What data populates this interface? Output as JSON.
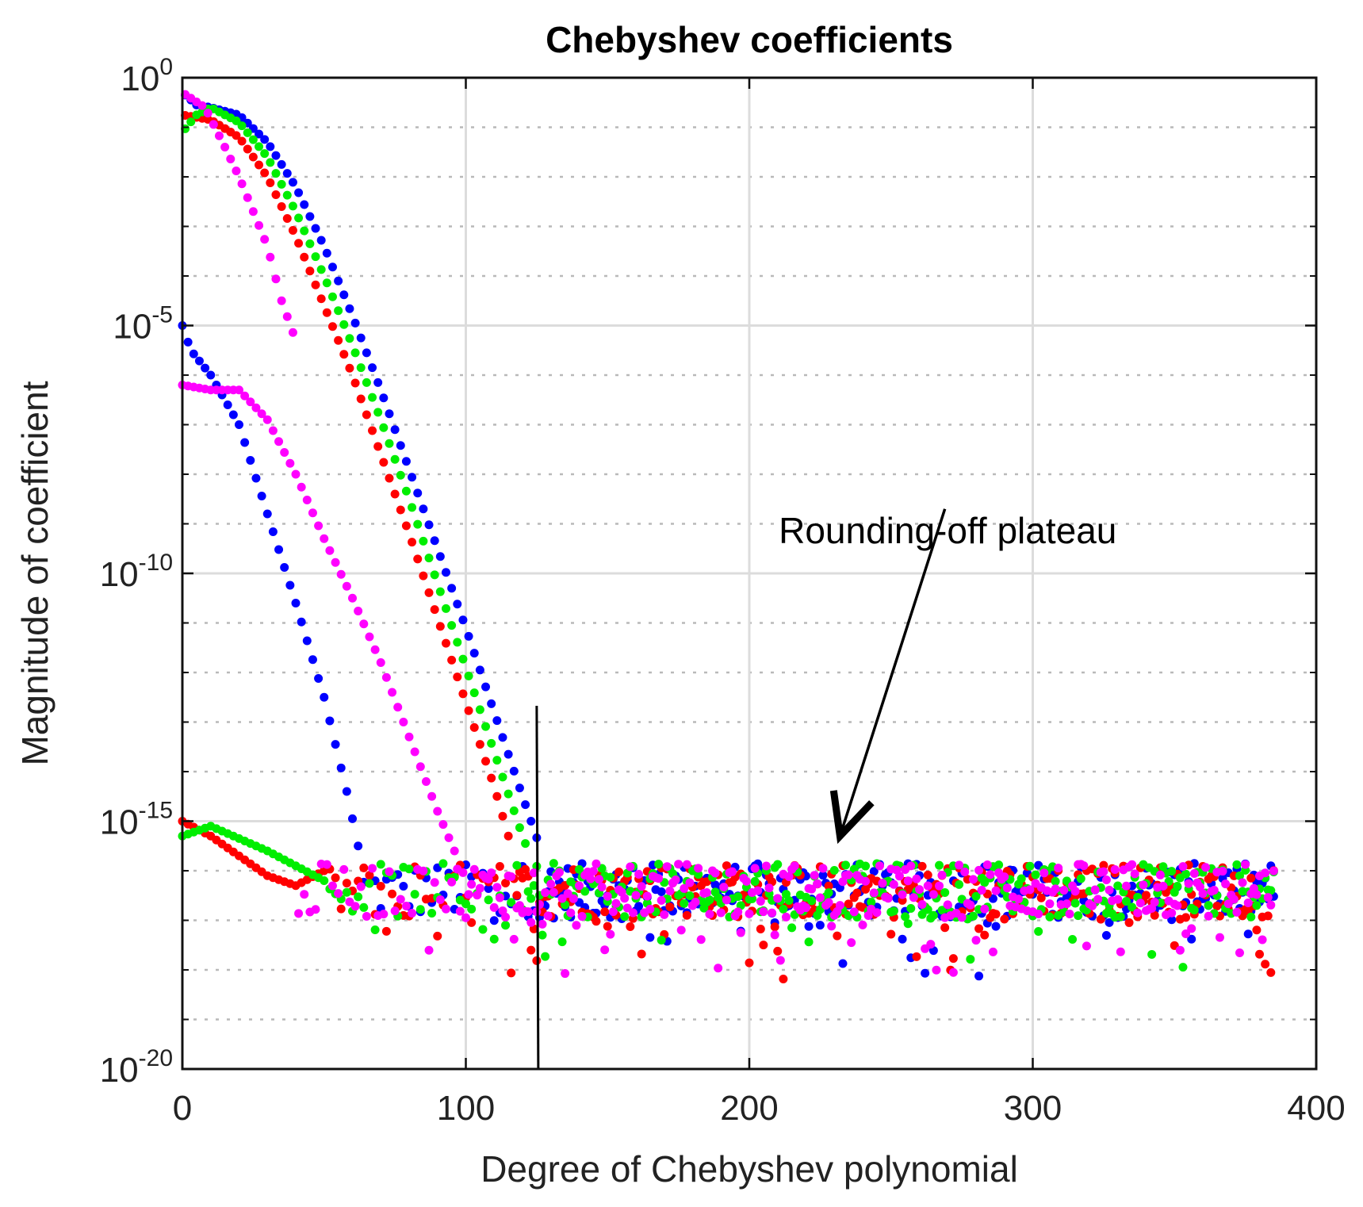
{
  "chart_data": {
    "type": "scatter",
    "title": "Chebyshev coefficients",
    "xlabel": "Degree of Chebyshev polynomial",
    "ylabel": "Magnitude of coefficient",
    "x_range": [
      0,
      400
    ],
    "y_range_log10": [
      -20,
      0
    ],
    "y_scale": "log",
    "x_ticks": [
      {
        "value": 0,
        "label": "0"
      },
      {
        "value": 100,
        "label": "100"
      },
      {
        "value": 200,
        "label": "200"
      },
      {
        "value": 300,
        "label": "300"
      },
      {
        "value": 400,
        "label": "400"
      }
    ],
    "y_ticks": [
      {
        "exp": 0,
        "base": "10",
        "sup": "0"
      },
      {
        "exp": -5,
        "base": "10",
        "sup": "-5"
      },
      {
        "exp": -10,
        "base": "10",
        "sup": "-10"
      },
      {
        "exp": -15,
        "base": "10",
        "sup": "-15"
      },
      {
        "exp": -20,
        "base": "10",
        "sup": "-20"
      }
    ],
    "grid": true,
    "cutoff_line_x": 125,
    "annotation": {
      "text": "Rounding-off plateau",
      "arrow_from": [
        269,
        -8.7
      ],
      "arrow_to": [
        232,
        -15.3
      ]
    },
    "plateau_log10": {
      "mean": -16.4,
      "spread": 0.55,
      "x_end": 385
    },
    "series": [
      {
        "name": "blue",
        "color": "#0000ff",
        "smooth": [
          [
            0,
            -0.3
          ],
          [
            5,
            -0.55
          ],
          [
            10,
            -0.6
          ],
          [
            20,
            -0.75
          ],
          [
            30,
            -1.3
          ],
          [
            40,
            -2.2
          ],
          [
            50,
            -3.4
          ],
          [
            60,
            -4.8
          ],
          [
            70,
            -6.3
          ],
          [
            80,
            -7.9
          ],
          [
            90,
            -9.5
          ],
          [
            100,
            -11.1
          ],
          [
            110,
            -12.8
          ],
          [
            120,
            -14.5
          ],
          [
            126,
            -15.5
          ]
        ],
        "even": [
          [
            0,
            -5.0
          ],
          [
            3,
            -5.5
          ],
          [
            10,
            -6.0
          ],
          [
            20,
            -7.0
          ],
          [
            30,
            -8.8
          ],
          [
            40,
            -10.6
          ],
          [
            50,
            -12.5
          ],
          [
            58,
            -14.4
          ],
          [
            62,
            -15.5
          ]
        ]
      },
      {
        "name": "red",
        "color": "#ff0000",
        "smooth": [
          [
            0,
            -0.75
          ],
          [
            10,
            -0.85
          ],
          [
            20,
            -1.2
          ],
          [
            30,
            -2.0
          ],
          [
            40,
            -3.2
          ],
          [
            50,
            -4.6
          ],
          [
            60,
            -6.0
          ],
          [
            70,
            -7.6
          ],
          [
            80,
            -9.2
          ],
          [
            90,
            -10.9
          ],
          [
            100,
            -12.6
          ],
          [
            110,
            -14.3
          ],
          [
            116,
            -15.5
          ]
        ],
        "even": [
          [
            0,
            -15.0
          ],
          [
            10,
            -15.3
          ],
          [
            20,
            -15.7
          ],
          [
            30,
            -16.1
          ],
          [
            40,
            -16.3
          ],
          [
            50,
            -16.0
          ]
        ]
      },
      {
        "name": "green",
        "color": "#00ee00",
        "smooth": [
          [
            0,
            -1.1
          ],
          [
            5,
            -0.75
          ],
          [
            10,
            -0.6
          ],
          [
            20,
            -0.9
          ],
          [
            30,
            -1.6
          ],
          [
            40,
            -2.7
          ],
          [
            50,
            -4.0
          ],
          [
            60,
            -5.4
          ],
          [
            70,
            -6.9
          ],
          [
            80,
            -8.5
          ],
          [
            90,
            -10.2
          ],
          [
            100,
            -11.9
          ],
          [
            110,
            -13.6
          ],
          [
            120,
            -15.3
          ],
          [
            122,
            -15.6
          ]
        ],
        "even": [
          [
            0,
            -15.3
          ],
          [
            10,
            -15.1
          ],
          [
            20,
            -15.35
          ],
          [
            30,
            -15.6
          ],
          [
            40,
            -15.9
          ],
          [
            50,
            -16.2
          ]
        ]
      },
      {
        "name": "magenta",
        "color": "#ff00ff",
        "smooth": [
          [
            0,
            -0.3
          ],
          [
            8,
            -0.6
          ],
          [
            15,
            -1.4
          ],
          [
            20,
            -2.0
          ],
          [
            25,
            -2.7
          ],
          [
            30,
            -3.4
          ],
          [
            35,
            -4.5
          ],
          [
            40,
            -5.3
          ]
        ],
        "even": [
          [
            0,
            -6.2
          ],
          [
            10,
            -6.3
          ],
          [
            20,
            -6.3
          ],
          [
            30,
            -6.9
          ],
          [
            40,
            -8.0
          ],
          [
            50,
            -9.3
          ],
          [
            60,
            -10.5
          ],
          [
            70,
            -11.8
          ],
          [
            80,
            -13.3
          ],
          [
            90,
            -14.8
          ],
          [
            96,
            -15.6
          ]
        ]
      }
    ]
  }
}
